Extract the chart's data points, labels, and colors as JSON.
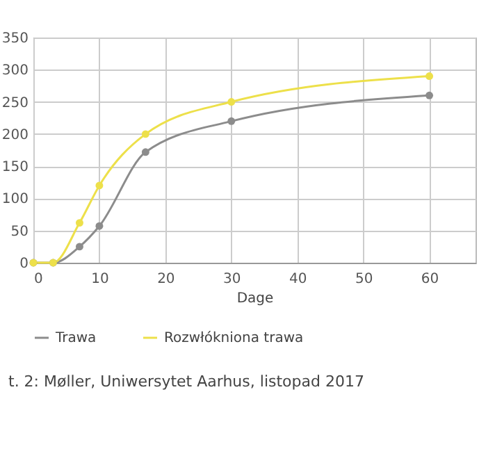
{
  "chart_data": {
    "type": "line",
    "xlabel": "Dage",
    "x": [
      0,
      3,
      7,
      10,
      17,
      30,
      60
    ],
    "series": [
      {
        "name": "Trawa",
        "color": "#8c8c8c",
        "values": [
          0,
          0,
          25,
          57,
          172,
          220,
          260
        ]
      },
      {
        "name": "Rozwłókniona trawa",
        "color": "#ede04a",
        "values": [
          0,
          0,
          62,
          120,
          200,
          250,
          290
        ]
      }
    ],
    "xlim": [
      0,
      67
    ],
    "xticks": [
      0,
      10,
      20,
      30,
      40,
      50,
      60
    ],
    "ylim": [
      0,
      350
    ],
    "yticks": [
      0,
      50,
      100,
      150,
      200,
      250,
      300,
      350
    ],
    "grid": true,
    "legend": "bottom",
    "marker": "circle",
    "line_style": "solid",
    "annotations": [
      "t. 2: Møller, Uniwersytet Aarhus, listopad 2017"
    ]
  }
}
